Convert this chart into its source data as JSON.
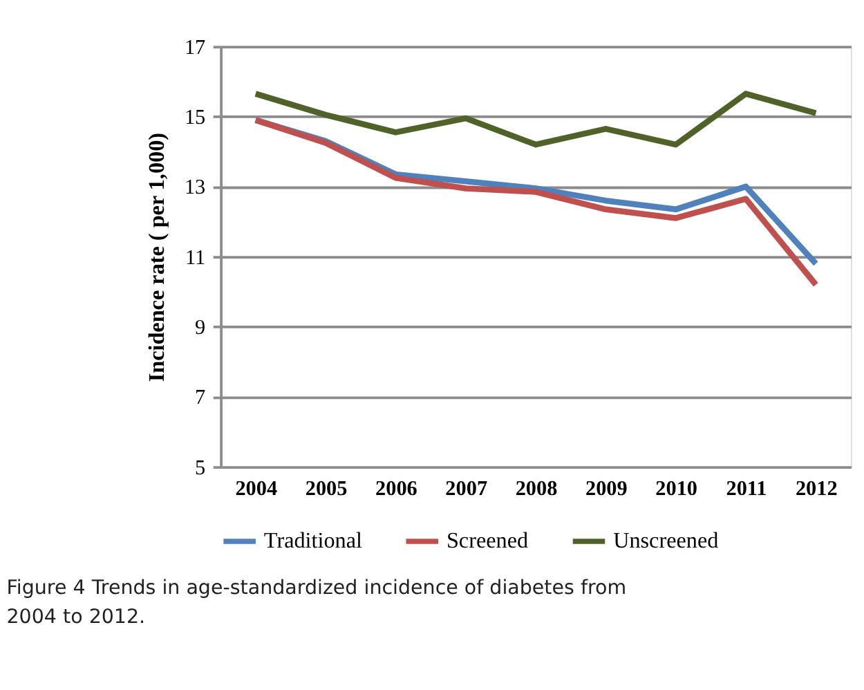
{
  "chart_data": {
    "type": "line",
    "ylabel": "Incidence rate ( per 1,000)",
    "categories": [
      "2004",
      "2005",
      "2006",
      "2007",
      "2008",
      "2009",
      "2010",
      "2011",
      "2012"
    ],
    "series": [
      {
        "name": "Traditional",
        "color": "#4f81bd",
        "values": [
          14.9,
          14.3,
          13.35,
          13.15,
          12.95,
          12.6,
          12.35,
          13.0,
          10.8
        ]
      },
      {
        "name": "Screened",
        "color": "#c0504d",
        "values": [
          14.9,
          14.25,
          13.25,
          12.95,
          12.85,
          12.35,
          12.1,
          12.65,
          10.2
        ]
      },
      {
        "name": "Unscreened",
        "color": "#4f6228",
        "values": [
          15.65,
          15.05,
          14.55,
          14.95,
          14.2,
          14.65,
          14.2,
          15.65,
          15.1
        ]
      }
    ],
    "ylim": [
      5,
      17
    ],
    "yticks": [
      5,
      7,
      9,
      11,
      13,
      15,
      17
    ],
    "grid": "y",
    "legend": "bottom",
    "marker": "none",
    "line_style": "solid",
    "annotations": [
      "Figure 4 Trends in age-standardized incidence of diabetes from 2004 to 2012."
    ]
  }
}
